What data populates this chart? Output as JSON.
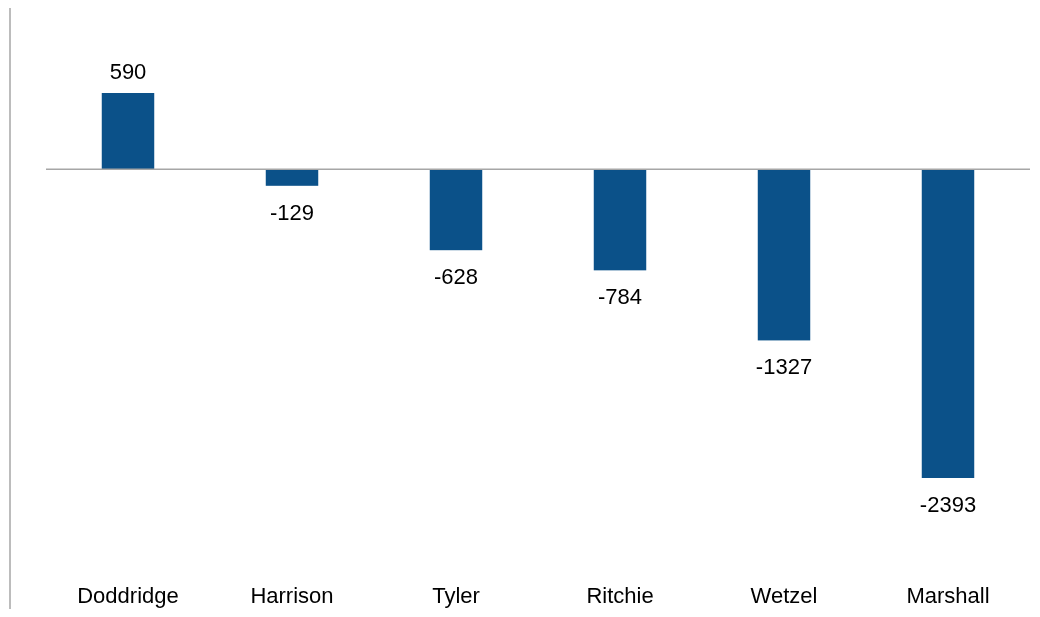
{
  "chart_data": {
    "type": "bar",
    "categories": [
      "Doddridge",
      "Harrison",
      "Tyler",
      "Ritchie",
      "Wetzel",
      "Marshall"
    ],
    "values": [
      590,
      -129,
      -628,
      -784,
      -1327,
      -2393
    ],
    "color": "#0b5189",
    "data_labels": true
  }
}
